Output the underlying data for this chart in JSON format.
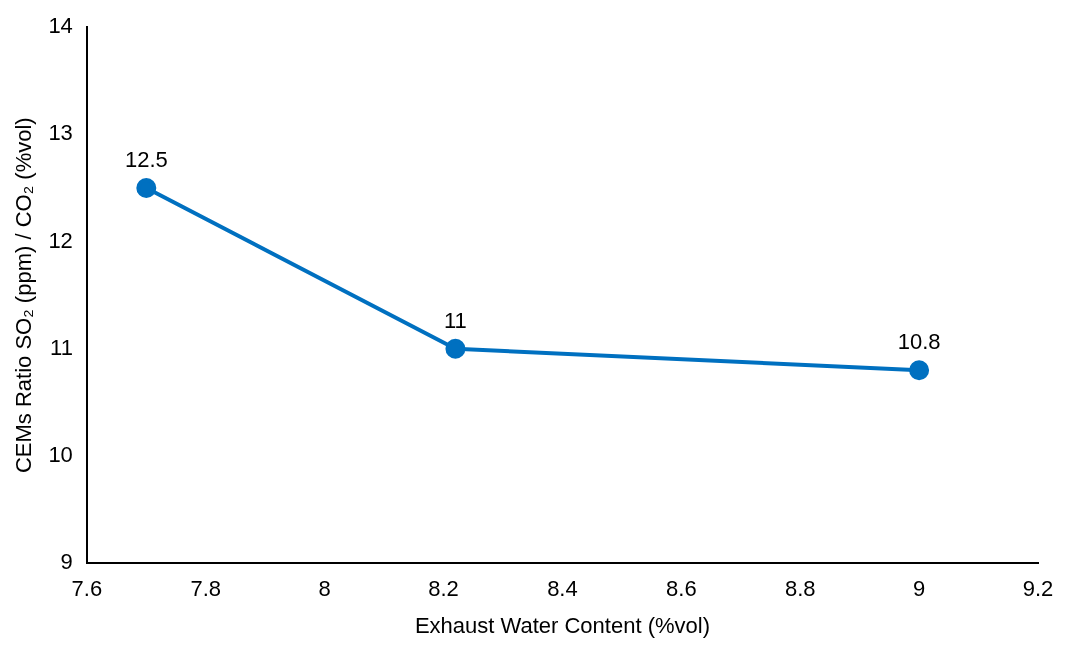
{
  "chart_data": {
    "type": "line",
    "xlabel": "Exhaust Water Content (%vol)",
    "ylabel": "CEMs Ratio SO₂ (ppm) / CO₂ (%vol)",
    "x": [
      7.7,
      8.22,
      9.0
    ],
    "series": [
      {
        "color": "#0070c0",
        "values": [
          12.5,
          11,
          10.8
        ]
      }
    ],
    "xlim": [
      7.6,
      9.2
    ],
    "xticks": [
      7.6,
      7.8,
      8,
      8.2,
      8.4,
      8.6,
      8.8,
      9,
      9.2
    ],
    "ylim": [
      9,
      14
    ],
    "yticks": [
      9,
      10,
      11,
      12,
      13,
      14
    ],
    "grid": false,
    "legend": false,
    "marker": "circle",
    "line_style": "solid",
    "data_labels": true
  }
}
